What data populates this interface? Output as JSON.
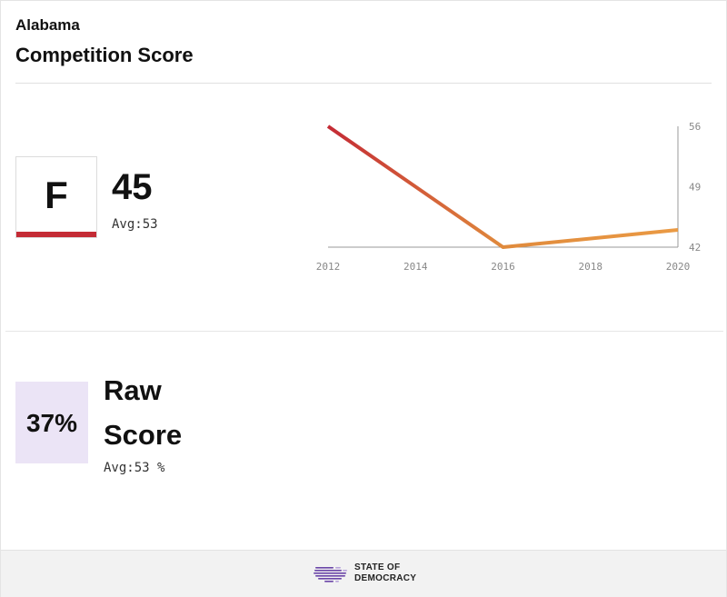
{
  "header": {
    "state": "Alabama",
    "title": "Competition Score"
  },
  "grade": {
    "letter": "F",
    "color": "#c42b35"
  },
  "score": {
    "value": "45",
    "avg_label": "Avg:53"
  },
  "raw": {
    "value": "37%",
    "label_line1": "Raw",
    "label_line2": "Score",
    "avg_label": "Avg:53 %",
    "box_color": "#ebe4f6"
  },
  "chart_data": {
    "type": "line",
    "x": [
      2012,
      2016,
      2020
    ],
    "series": [
      {
        "values": [
          56,
          42,
          44
        ]
      }
    ],
    "x_ticks": [
      "2012",
      "2014",
      "2016",
      "2018",
      "2020"
    ],
    "y_ticks": [
      "56",
      "49",
      "42"
    ],
    "xlim": [
      2012,
      2020
    ],
    "ylim": [
      42,
      56
    ],
    "y_axis_position": "right",
    "grid": false,
    "line_gradient": [
      "#c42b35",
      "#e08a3c",
      "#ea9a44"
    ]
  },
  "footer": {
    "logo_line1": "STATE OF",
    "logo_line2": "DEMOCRACY",
    "logo_icon": "us-map-icon",
    "accent": "#6b46a8"
  }
}
